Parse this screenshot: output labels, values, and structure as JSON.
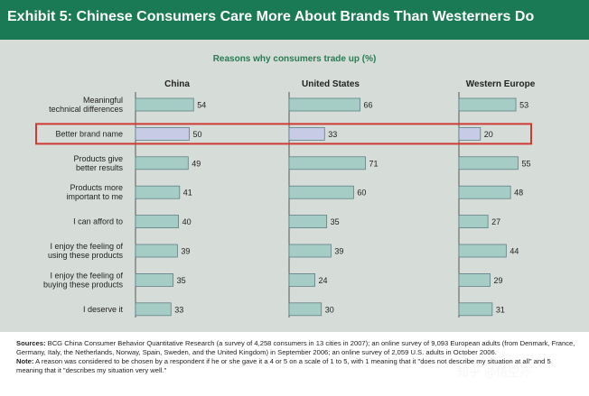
{
  "header": {
    "title": "Exhibit 5: Chinese Consumers Care More About Brands Than Westerners Do"
  },
  "chart_data": {
    "type": "bar",
    "orientation": "horizontal",
    "title": "Reasons why consumers trade up (%)",
    "categories": [
      "Meaningful technical differences",
      "Better brand name",
      "Products give better results",
      "Products more important to me",
      "I can afford to",
      "I enjoy the feeling of using these products",
      "I enjoy the feeling of buying these products",
      "I deserve it"
    ],
    "category_lines": [
      [
        "Meaningful",
        "technical differences"
      ],
      [
        "Better brand name"
      ],
      [
        "Products give",
        "better results"
      ],
      [
        "Products more",
        "important to me"
      ],
      [
        "I can afford to"
      ],
      [
        "I enjoy the feeling of",
        "using these products"
      ],
      [
        "I enjoy the feeling of",
        "buying these products"
      ],
      [
        "I deserve it"
      ]
    ],
    "series": [
      {
        "name": "China",
        "values": [
          54,
          50,
          49,
          41,
          40,
          39,
          35,
          33
        ]
      },
      {
        "name": "United States",
        "values": [
          66,
          33,
          71,
          60,
          35,
          39,
          24,
          30
        ]
      },
      {
        "name": "Western Europe",
        "values": [
          53,
          20,
          55,
          48,
          27,
          44,
          29,
          31
        ]
      }
    ],
    "highlight_index": 1,
    "grid": false,
    "legend": "none",
    "colors": {
      "bar": "#a6cdc5",
      "bar_highlight": "#c8cbe6",
      "bar_stroke": "#5f7f86",
      "highlight_box": "#d03a35",
      "axis": "#555555"
    }
  },
  "footer": {
    "sources_label": "Sources:",
    "sources_text": "BCG China Consumer Behavior Quantitative Research (a survey of 4,258 consumers in 13 cities in 2007); an online survey of 9,093 European adults (from Denmark, France, Germany, Italy, the Netherlands, Norway, Spain, Sweden, and the United Kingdom) in September 2006; an online survey of 2,059 U.S. adults in October 2006.",
    "note_label": "Note:",
    "note_text": "A reason was considered to be chosen by a respondent if he or she gave it a 4 or 5 on a scale of 1 to 5, with 1 meaning that it \"does not describe my situation at all\" and 5 meaning that it \"describes my situation very well.\""
  },
  "watermark": "知乎 @悟空孙"
}
